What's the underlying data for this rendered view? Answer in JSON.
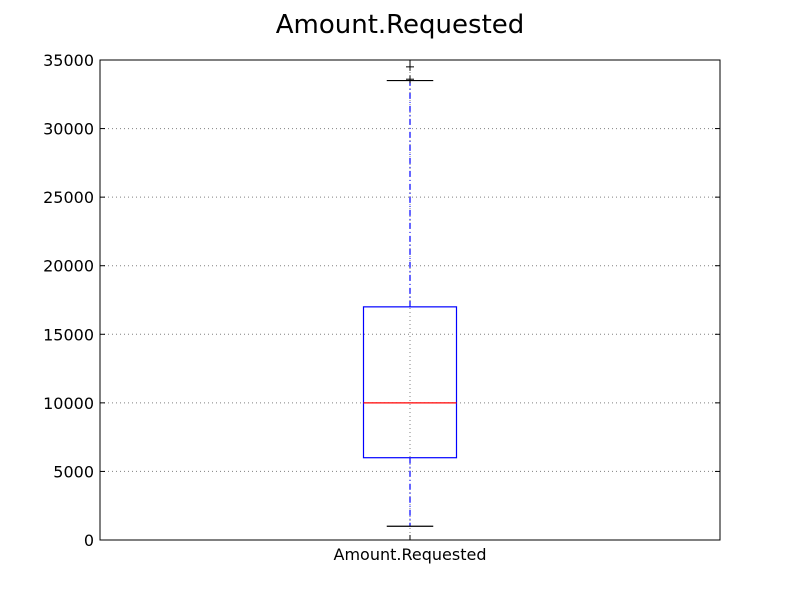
{
  "chart_data": {
    "type": "box",
    "title": "Amount.Requested",
    "xlabel": "",
    "ylabel": "",
    "ylim": [
      0,
      35000
    ],
    "yticks": [
      0,
      5000,
      10000,
      15000,
      20000,
      25000,
      30000,
      35000
    ],
    "grid": "horizontal-dotted",
    "categories": [
      "Amount.Requested"
    ],
    "boxes": [
      {
        "category": "Amount.Requested",
        "whisker_low": 1000,
        "q1": 6000,
        "median": 10000,
        "q3": 17000,
        "whisker_high": 33500,
        "outliers": [
          33600,
          34500
        ]
      }
    ],
    "colors": {
      "box": "#0000ff",
      "median": "#ff0000",
      "whisker": "#0000ff",
      "cap": "#000000",
      "grid": "#808080"
    }
  }
}
